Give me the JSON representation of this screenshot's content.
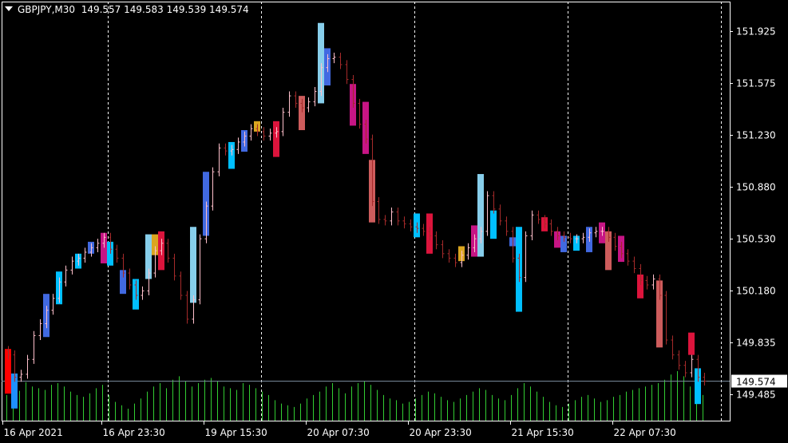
{
  "header": {
    "symbol": "GBPJPY,M30",
    "open": "149.557",
    "high": "149.583",
    "low": "149.539",
    "close": "149.574"
  },
  "colors": {
    "background": "#000000",
    "bull_bar": "#FFC0CB",
    "bear_bar": "#A52A2A",
    "volume": "#32CD32",
    "grid": "#FFFFFF",
    "last_price_line": "#778899"
  },
  "chart_data": {
    "type": "ohlc",
    "ylim": [
      149.33,
      152.0
    ],
    "y_ticks": [
      "151.925",
      "151.575",
      "151.230",
      "150.880",
      "150.530",
      "150.180",
      "149.835",
      "149.485"
    ],
    "last_price": "149.574",
    "x_labels": [
      {
        "bar": 0,
        "label": "16 Apr 2021"
      },
      {
        "bar": 15.5,
        "label": "16 Apr 23:30"
      },
      {
        "bar": 31.5,
        "label": "19 Apr 15:30"
      },
      {
        "bar": 47.5,
        "label": "20 Apr 07:30"
      },
      {
        "bar": 63.5,
        "label": "20 Apr 23:30"
      },
      {
        "bar": 79.5,
        "label": "21 Apr 15:30"
      },
      {
        "bar": 95.5,
        "label": "22 Apr 07:30"
      }
    ],
    "day_separators": [
      16,
      40,
      64,
      88,
      112
    ],
    "closes": [
      149.75,
      149.6,
      149.62,
      149.72,
      149.88,
      149.96,
      150.05,
      150.13,
      150.24,
      150.32,
      150.38,
      150.4,
      150.44,
      150.47,
      150.5,
      150.54,
      150.46,
      150.4,
      150.3,
      150.22,
      150.15,
      150.18,
      150.3,
      150.45,
      150.5,
      150.4,
      150.28,
      150.15,
      149.99,
      150.12,
      150.53,
      150.75,
      150.98,
      151.14,
      151.12,
      151.13,
      151.18,
      151.22,
      151.27,
      151.25,
      151.22,
      151.24,
      151.25,
      151.38,
      151.49,
      151.44,
      151.41,
      151.45,
      151.52,
      151.68,
      151.74,
      151.75,
      151.7,
      151.6,
      151.44,
      151.3,
      151.2,
      150.78,
      150.66,
      150.65,
      150.71,
      150.65,
      150.63,
      150.61,
      150.6,
      150.58,
      150.55,
      150.49,
      150.43,
      150.4,
      150.37,
      150.42,
      150.47,
      150.53,
      150.58,
      150.82,
      150.73,
      150.65,
      150.58,
      150.4,
      150.27,
      150.55,
      150.69,
      150.66,
      150.63,
      150.58,
      150.55,
      150.54,
      150.53,
      150.53,
      150.54,
      150.57,
      150.58,
      150.58,
      150.54,
      150.48,
      150.43,
      150.38,
      150.33,
      150.25,
      150.22,
      150.26,
      150.15,
      149.85,
      149.75,
      149.68,
      149.63,
      149.72,
      149.6,
      149.574
    ],
    "volumes": [
      30,
      40,
      35,
      45,
      40,
      38,
      36,
      42,
      44,
      40,
      34,
      30,
      28,
      32,
      38,
      42,
      30,
      22,
      18,
      14,
      20,
      26,
      34,
      40,
      44,
      38,
      48,
      52,
      46,
      40,
      44,
      48,
      50,
      46,
      40,
      38,
      36,
      44,
      42,
      38,
      34,
      30,
      24,
      20,
      18,
      16,
      20,
      26,
      30,
      34,
      40,
      44,
      38,
      32,
      40,
      44,
      46,
      42,
      36,
      30,
      26,
      24,
      20,
      22,
      26,
      30,
      34,
      32,
      28,
      24,
      22,
      26,
      30,
      34,
      38,
      36,
      30,
      26,
      24,
      30,
      38,
      44,
      40,
      34,
      28,
      22,
      18,
      16,
      20,
      24,
      28,
      30,
      26,
      22,
      24,
      28,
      30,
      34,
      36,
      38,
      40,
      42,
      44,
      48,
      54,
      58,
      52,
      40,
      36,
      30
    ],
    "boxes": [
      {
        "bar": 0,
        "top": 149.79,
        "bottom": 149.49,
        "color": "#FF0000"
      },
      {
        "bar": 1,
        "top": 149.625,
        "bottom": 149.39,
        "color": "#1E90FF"
      },
      {
        "bar": 6,
        "top": 150.16,
        "bottom": 149.87,
        "color": "#4169E1"
      },
      {
        "bar": 8,
        "top": 150.31,
        "bottom": 150.09,
        "color": "#00BFFF"
      },
      {
        "bar": 11,
        "top": 150.43,
        "bottom": 150.33,
        "color": "#00BFFF"
      },
      {
        "bar": 13,
        "top": 150.51,
        "bottom": 150.43,
        "color": "#4169E1"
      },
      {
        "bar": 15,
        "top": 150.57,
        "bottom": 150.365,
        "color": "#C71585"
      },
      {
        "bar": 16,
        "top": 150.51,
        "bottom": 150.35,
        "color": "#00BFFF"
      },
      {
        "bar": 18,
        "top": 150.32,
        "bottom": 150.16,
        "color": "#4169E1"
      },
      {
        "bar": 20,
        "top": 150.26,
        "bottom": 150.055,
        "color": "#00BFFF"
      },
      {
        "bar": 22,
        "top": 150.56,
        "bottom": 150.26,
        "color": "#87CEEB"
      },
      {
        "bar": 23,
        "top": 150.56,
        "bottom": 150.42,
        "color": "#DAA520"
      },
      {
        "bar": 24,
        "top": 150.58,
        "bottom": 150.32,
        "color": "#DC143C"
      },
      {
        "bar": 29,
        "top": 150.61,
        "bottom": 150.1,
        "color": "#87CEEB"
      },
      {
        "bar": 31,
        "top": 150.98,
        "bottom": 150.55,
        "color": "#4169E1"
      },
      {
        "bar": 35,
        "top": 151.18,
        "bottom": 151.0,
        "color": "#00BFFF"
      },
      {
        "bar": 37,
        "top": 151.26,
        "bottom": 151.115,
        "color": "#4169E1"
      },
      {
        "bar": 39,
        "top": 151.32,
        "bottom": 151.25,
        "color": "#DAA520"
      },
      {
        "bar": 42,
        "top": 151.32,
        "bottom": 151.08,
        "color": "#DC143C"
      },
      {
        "bar": 46,
        "top": 151.49,
        "bottom": 151.26,
        "color": "#CD5C5C"
      },
      {
        "bar": 49,
        "top": 151.98,
        "bottom": 151.44,
        "color": "#87CEEB"
      },
      {
        "bar": 50,
        "top": 151.81,
        "bottom": 151.56,
        "color": "#4169E1"
      },
      {
        "bar": 54,
        "top": 151.57,
        "bottom": 151.29,
        "color": "#C71585"
      },
      {
        "bar": 56,
        "top": 151.45,
        "bottom": 151.1,
        "color": "#C71585"
      },
      {
        "bar": 57,
        "top": 151.06,
        "bottom": 150.64,
        "color": "#CD5C5C"
      },
      {
        "bar": 64,
        "top": 150.7,
        "bottom": 150.54,
        "color": "#00BFFF"
      },
      {
        "bar": 66,
        "top": 150.7,
        "bottom": 150.43,
        "color": "#DC143C"
      },
      {
        "bar": 71,
        "top": 150.48,
        "bottom": 150.38,
        "color": "#DAA520"
      },
      {
        "bar": 73,
        "top": 150.62,
        "bottom": 150.41,
        "color": "#C71585"
      },
      {
        "bar": 74,
        "top": 150.965,
        "bottom": 150.41,
        "color": "#87CEEB"
      },
      {
        "bar": 76,
        "top": 150.72,
        "bottom": 150.53,
        "color": "#00BFFF"
      },
      {
        "bar": 79,
        "top": 150.54,
        "bottom": 150.48,
        "color": "#4169E1"
      },
      {
        "bar": 80,
        "top": 150.61,
        "bottom": 150.04,
        "color": "#00BFFF"
      },
      {
        "bar": 84,
        "top": 150.675,
        "bottom": 150.58,
        "color": "#DC143C"
      },
      {
        "bar": 86,
        "top": 150.58,
        "bottom": 150.47,
        "color": "#C71585"
      },
      {
        "bar": 87,
        "top": 150.55,
        "bottom": 150.44,
        "color": "#4169E1"
      },
      {
        "bar": 89,
        "top": 150.55,
        "bottom": 150.45,
        "color": "#00BFFF"
      },
      {
        "bar": 91,
        "top": 150.61,
        "bottom": 150.44,
        "color": "#4169E1"
      },
      {
        "bar": 93,
        "top": 150.64,
        "bottom": 150.5,
        "color": "#C71585"
      },
      {
        "bar": 94,
        "top": 150.58,
        "bottom": 150.32,
        "color": "#CD5C5C"
      },
      {
        "bar": 96,
        "top": 150.55,
        "bottom": 150.375,
        "color": "#C71585"
      },
      {
        "bar": 99,
        "top": 150.29,
        "bottom": 150.13,
        "color": "#DC143C"
      },
      {
        "bar": 102,
        "top": 150.25,
        "bottom": 149.8,
        "color": "#CD5C5C"
      },
      {
        "bar": 107,
        "top": 149.9,
        "bottom": 149.75,
        "color": "#DC143C"
      },
      {
        "bar": 108,
        "top": 149.66,
        "bottom": 149.42,
        "color": "#00BFFF"
      }
    ]
  }
}
